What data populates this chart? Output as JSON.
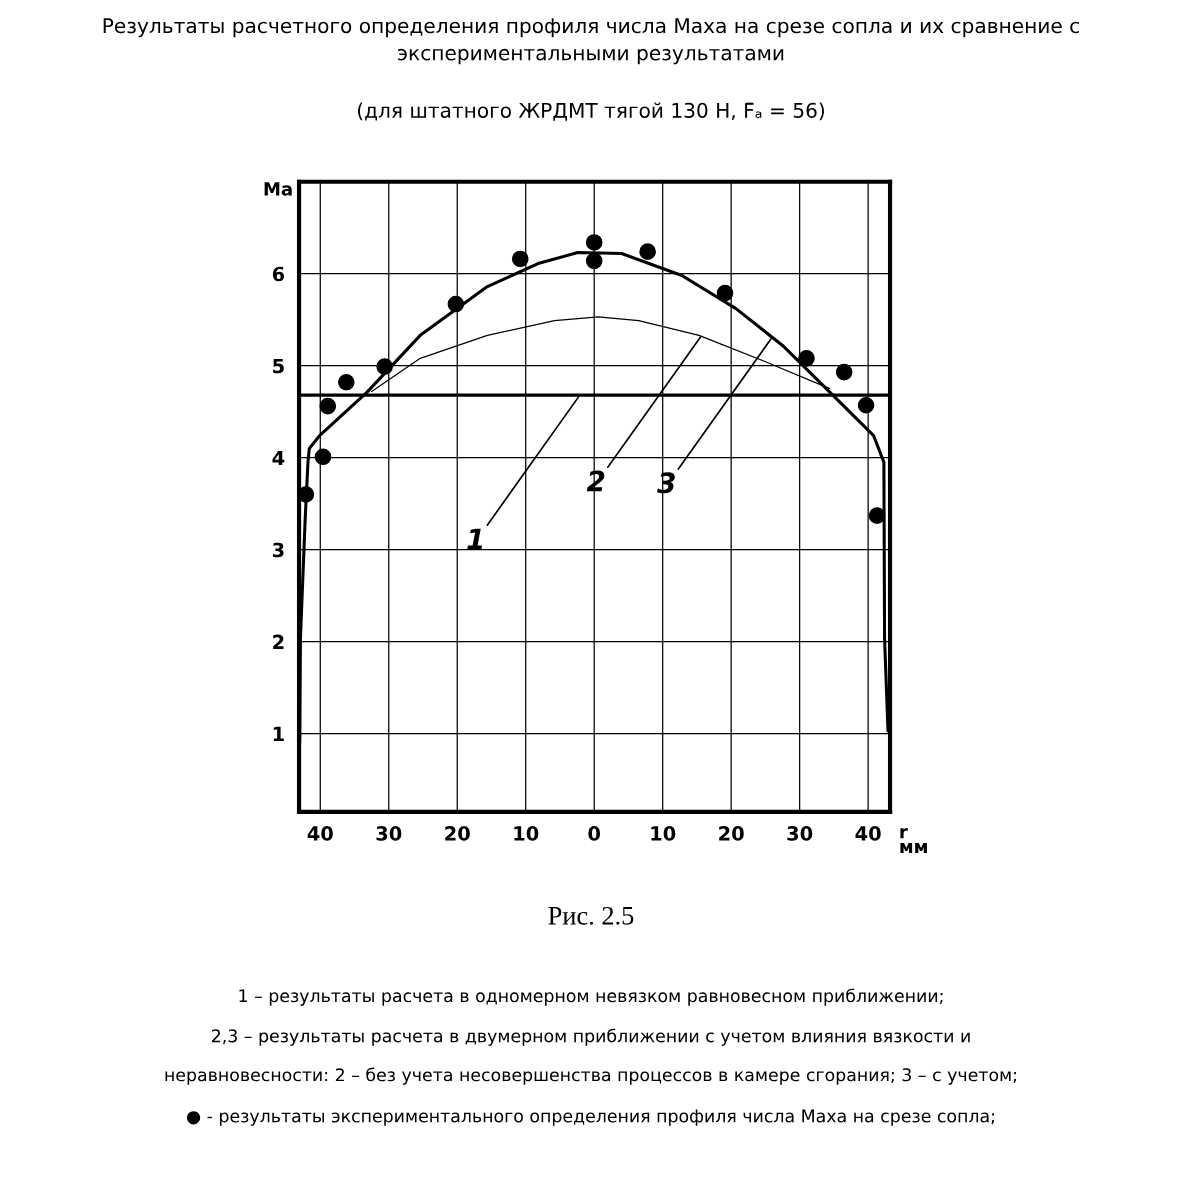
{
  "chart_data": {
    "type": "line",
    "title": "Результаты расчетного определения профиля числа Маха на срезе сопла и их сравнение с экспериментальными результатами",
    "subtitle": "(для штатного ЖРДМТ тягой 130 Н, F̄ₐ = 56)",
    "xlabel": "r\nмм",
    "ylabel": "Ma",
    "xlim": [
      -43.1,
      43.2
    ],
    "ylim": [
      0.15,
      7
    ],
    "xticks": [
      {
        "value": -40,
        "label": "40"
      },
      {
        "value": -30,
        "label": "30"
      },
      {
        "value": -20,
        "label": "20"
      },
      {
        "value": -10,
        "label": "10"
      },
      0,
      10,
      20,
      30,
      40
    ],
    "yticks": [
      1,
      2,
      3,
      4,
      5,
      6
    ],
    "grid": true,
    "legend": false,
    "line_style": "solid",
    "series": [
      {
        "color": "#000000",
        "x": [
          -43.1,
          43.2
        ],
        "values": [
          4.68,
          4.68
        ]
      },
      {
        "color": "#000000",
        "x": [
          -32.5,
          -25.4,
          -15.6,
          -5.8,
          0.6,
          6.5,
          15.3,
          25.1,
          34.4
        ],
        "values": [
          4.72,
          5.08,
          5.33,
          5.49,
          5.53,
          5.49,
          5.33,
          5.04,
          4.75
        ]
      },
      {
        "color": "#000000",
        "x": [
          -43.0,
          -42.9,
          -42.2,
          -41.8,
          -41.6,
          -40.1,
          -33.2,
          -25.4,
          -15.6,
          -8.2,
          -2.4,
          4.0,
          12.8,
          20.7,
          27.5,
          35.4,
          40.8,
          42.3,
          42.4,
          42.9
        ],
        "values": [
          0.9,
          2.03,
          3.34,
          3.95,
          4.1,
          4.24,
          4.71,
          5.33,
          5.86,
          6.11,
          6.23,
          6.22,
          5.98,
          5.62,
          5.22,
          4.64,
          4.24,
          3.95,
          2.03,
          1.03
        ]
      },
      {
        "type": "scatter",
        "color": "#000000",
        "marker": "circle",
        "x": [
          -42.1,
          -39.6,
          -38.9,
          -36.2,
          -30.6,
          -20.2,
          -10.8,
          0,
          0,
          7.8,
          19.1,
          31.0,
          36.5,
          39.7,
          41.3
        ],
        "values": [
          3.6,
          4.01,
          4.56,
          4.82,
          4.99,
          5.67,
          6.16,
          6.34,
          6.14,
          6.24,
          5.79,
          5.08,
          4.93,
          4.57,
          3.37
        ]
      }
    ],
    "annotations": [
      {
        "text": "1",
        "x": -2.1,
        "y": 4.68
      },
      {
        "text": "2",
        "x": 15.5,
        "y": 5.31
      },
      {
        "text": "3",
        "x": 25.8,
        "y": 5.29
      },
      "Рис. 2.5",
      "1 – результаты расчета в одномерном невязком равновесном приближении;",
      "2,3 – результаты расчета в двумерном приближении с учетом влияния вязкости и",
      "неравновесности: 2 – без учета несовершенства процессов в камере сгорания; 3 – с учетом;",
      "● - результаты экспериментального определения профиля числа Маха на срезе сопла;"
    ]
  }
}
